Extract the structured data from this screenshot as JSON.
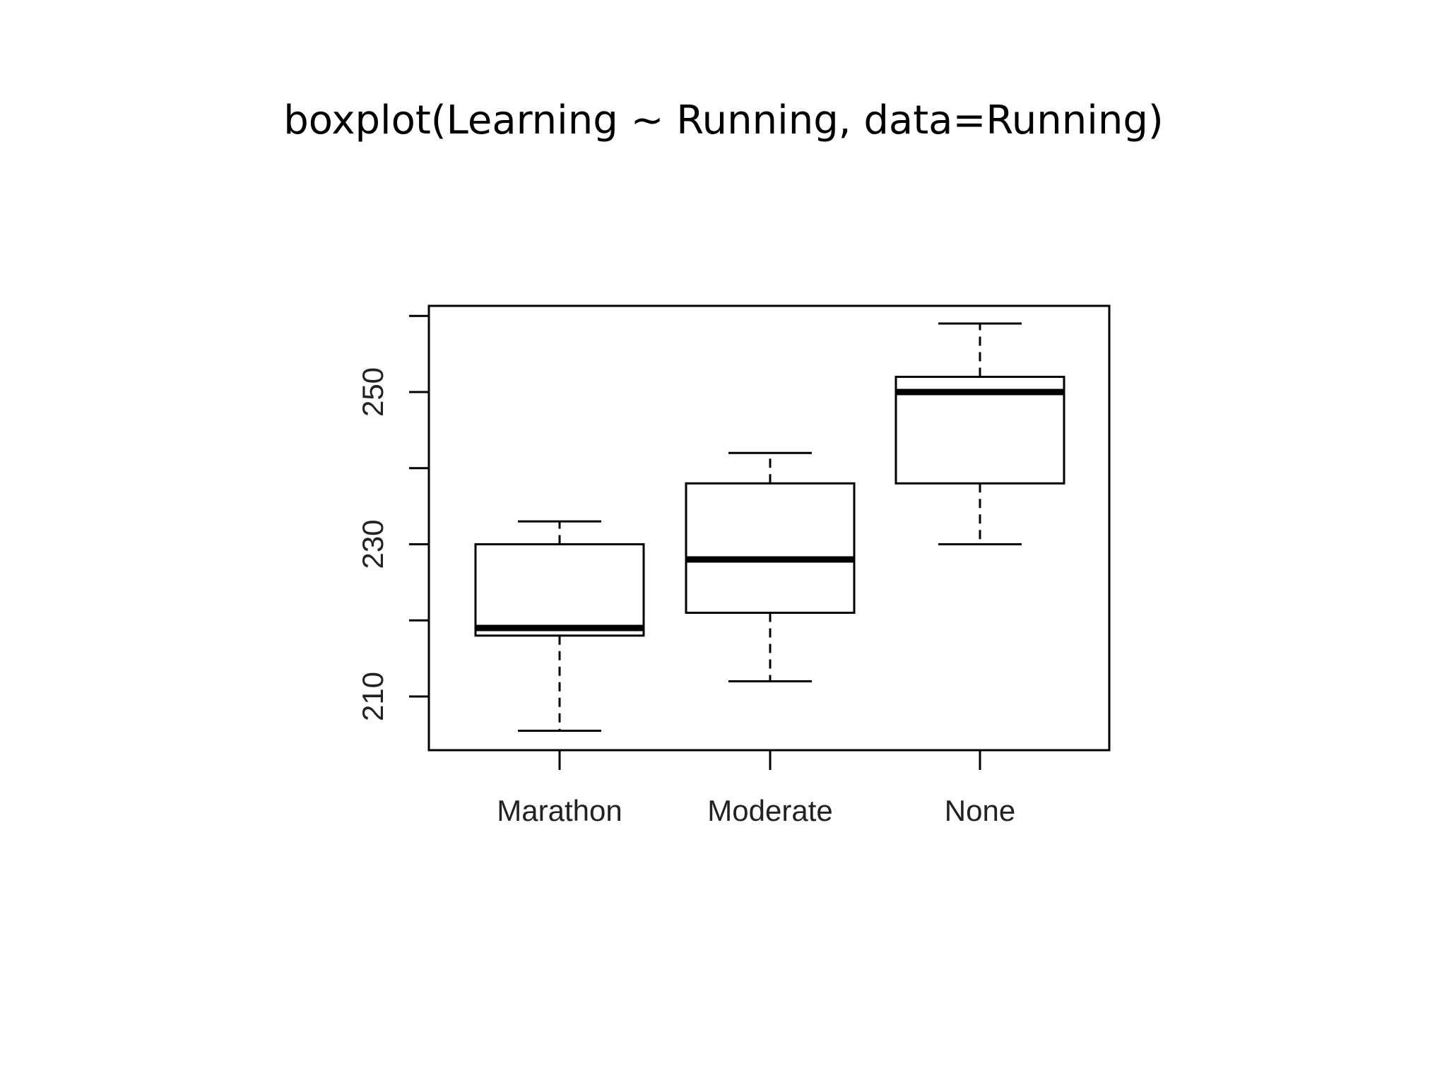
{
  "slide": {
    "title": "boxplot(Learning ~ Running, data=Running)"
  },
  "chart_data": {
    "type": "boxplot",
    "categories": [
      "Marathon",
      "Moderate",
      "None"
    ],
    "boxes": [
      {
        "category": "Marathon",
        "whisker_low": 205.5,
        "q1": 218,
        "median": 219,
        "q3": 230,
        "whisker_high": 233
      },
      {
        "category": "Moderate",
        "whisker_low": 212,
        "q1": 221,
        "median": 228,
        "q3": 238,
        "whisker_high": 242
      },
      {
        "category": "None",
        "whisker_low": 230,
        "q1": 238,
        "median": 250,
        "q3": 252,
        "whisker_high": 259
      }
    ],
    "y_ticks": [
      210,
      220,
      230,
      240,
      250,
      260
    ],
    "y_tick_labels": [
      "210",
      "230",
      "250"
    ],
    "ylim": [
      203,
      261
    ],
    "grid": false,
    "legend": "none"
  }
}
